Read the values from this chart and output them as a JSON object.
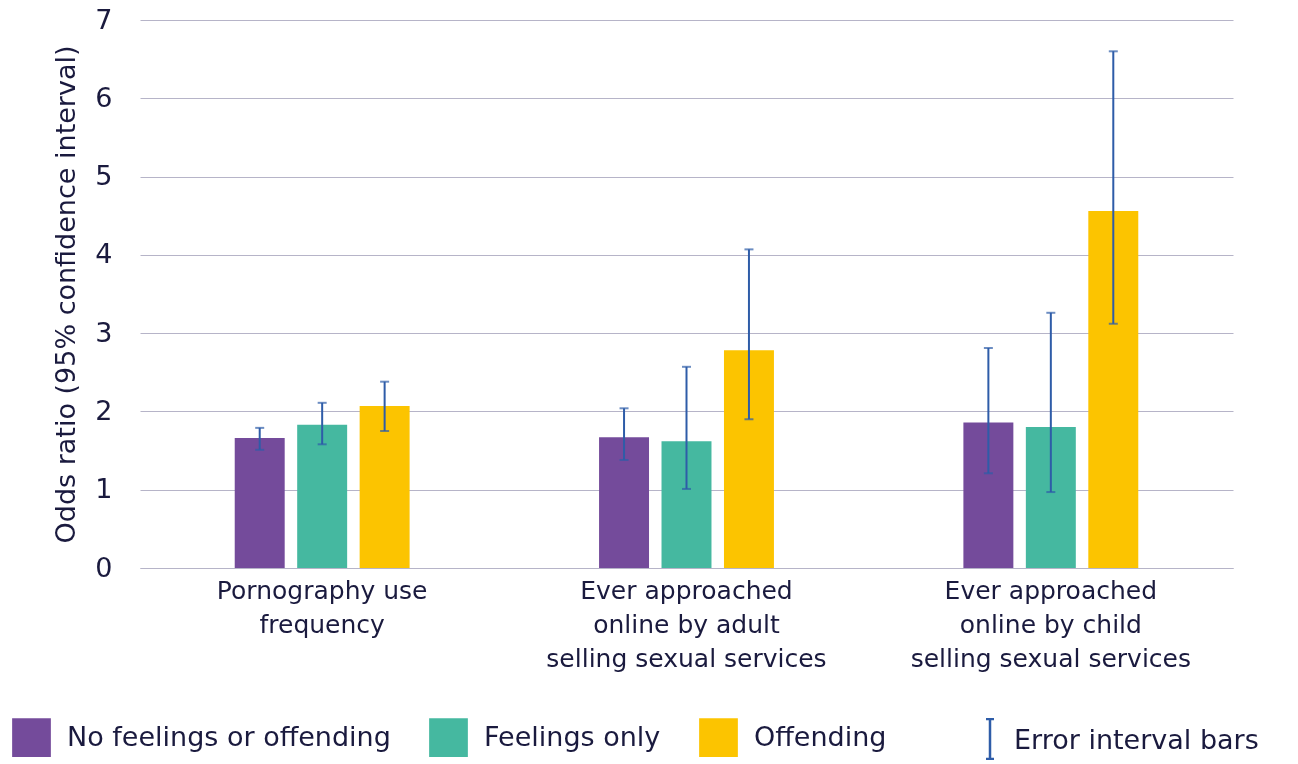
{
  "chart_data": {
    "type": "bar",
    "ylabel": "Odds ratio (95% confidence interval)",
    "categories": [
      "Pornography use frequency",
      "Ever approached online by adult selling sexual services",
      "Ever approached online by child selling sexual services"
    ],
    "series": [
      {
        "name": "No feelings or offending",
        "color": "#744b9b",
        "values": [
          1.66,
          1.67,
          1.86
        ],
        "errors": [
          [
            1.51,
            1.79
          ],
          [
            1.38,
            2.04
          ],
          [
            1.21,
            2.81
          ]
        ]
      },
      {
        "name": "Feelings only",
        "color": "#45b8a0",
        "values": [
          1.83,
          1.62,
          1.8
        ],
        "errors": [
          [
            1.58,
            2.11
          ],
          [
            1.01,
            2.57
          ],
          [
            0.97,
            3.26
          ]
        ]
      },
      {
        "name": "Offending",
        "color": "#fcc400",
        "values": [
          2.07,
          2.78,
          4.56
        ],
        "errors": [
          [
            1.75,
            2.38
          ],
          [
            1.9,
            4.07
          ],
          [
            3.12,
            6.6
          ]
        ]
      }
    ],
    "ylim": [
      0,
      7
    ],
    "yticks": [
      0,
      1,
      2,
      3,
      4,
      5,
      6,
      7
    ],
    "grid": "y",
    "legend": "bottom",
    "annotations": [
      "Error interval bars"
    ]
  }
}
